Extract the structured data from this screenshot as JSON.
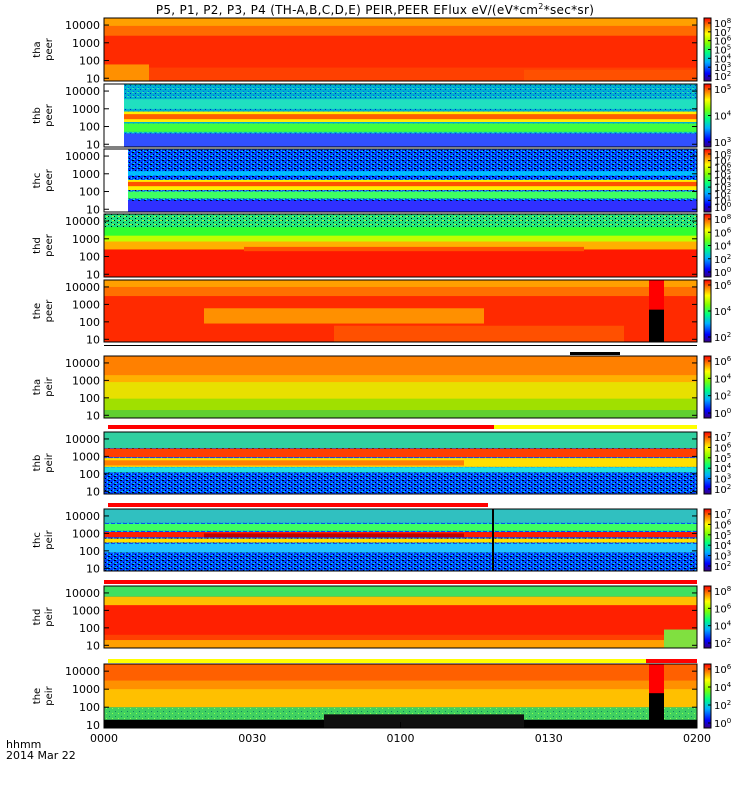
{
  "title": "P5, P1, P2, P3, P4 (TH-A,B,C,D,E) PEIR,PEER EFlux eV/(eV*cm",
  "title_sup": "2",
  "title_end": "*sec*sr)",
  "time_axis": {
    "label": "hhmm",
    "date": "2014 Mar 22",
    "ticks": [
      "0000",
      "0030",
      "0100",
      "0130",
      "0200"
    ],
    "range_min": [
      0,
      120
    ]
  },
  "panels": [
    {
      "probe": "tha",
      "species": "peer",
      "yticks": [
        "10000",
        "1000",
        "100",
        "10"
      ],
      "cbar_ticks": [
        {
          "b": "10",
          "e": "8"
        },
        {
          "b": "10",
          "e": "7"
        },
        {
          "b": "10",
          "e": "6"
        },
        {
          "b": "10",
          "e": "5"
        },
        {
          "b": "10",
          "e": "4"
        },
        {
          "b": "10",
          "e": "3"
        },
        {
          "b": "10",
          "e": "2"
        }
      ],
      "style": "hot"
    },
    {
      "probe": "thb",
      "species": "peer",
      "yticks": [
        "10000",
        "1000",
        "100",
        "10"
      ],
      "cbar_ticks": [
        {
          "b": "10",
          "e": "5"
        },
        {
          "b": "10",
          "e": "4"
        },
        {
          "b": "10",
          "e": "3"
        }
      ],
      "style": "bands_low"
    },
    {
      "probe": "thc",
      "species": "peer",
      "yticks": [
        "10000",
        "1000",
        "100",
        "10"
      ],
      "cbar_ticks": [
        {
          "b": "10",
          "e": "8"
        },
        {
          "b": "10",
          "e": "7"
        },
        {
          "b": "10",
          "e": "6"
        },
        {
          "b": "10",
          "e": "5"
        },
        {
          "b": "10",
          "e": "4"
        },
        {
          "b": "10",
          "e": "3"
        },
        {
          "b": "10",
          "e": "2"
        },
        {
          "b": "10",
          "e": "1"
        },
        {
          "b": "10",
          "e": "0"
        }
      ],
      "style": "bands_noisy"
    },
    {
      "probe": "thd",
      "species": "peer",
      "yticks": [
        "10000",
        "1000",
        "100",
        "10"
      ],
      "cbar_ticks": [
        {
          "b": "10",
          "e": "8"
        },
        {
          "b": "10",
          "e": "6"
        },
        {
          "b": "10",
          "e": "4"
        },
        {
          "b": "10",
          "e": "2"
        },
        {
          "b": "10",
          "e": "0"
        }
      ],
      "style": "low_hot"
    },
    {
      "probe": "the",
      "species": "peer",
      "yticks": [
        "10000",
        "1000",
        "100",
        "10"
      ],
      "cbar_ticks": [
        {
          "b": "10",
          "e": "6"
        },
        {
          "b": "10",
          "e": "4"
        },
        {
          "b": "10",
          "e": "2"
        }
      ],
      "style": "hot_gap"
    },
    {
      "probe": "tha",
      "species": "peir",
      "yticks": [
        "10000",
        "1000",
        "100",
        "10"
      ],
      "cbar_ticks": [
        {
          "b": "10",
          "e": "6"
        },
        {
          "b": "10",
          "e": "4"
        },
        {
          "b": "10",
          "e": "2"
        },
        {
          "b": "10",
          "e": "0"
        }
      ],
      "style": "ion_warm"
    },
    {
      "probe": "thb",
      "species": "peir",
      "yticks": [
        "10000",
        "1000",
        "100",
        "10"
      ],
      "cbar_ticks": [
        {
          "b": "10",
          "e": "7"
        },
        {
          "b": "10",
          "e": "6"
        },
        {
          "b": "10",
          "e": "5"
        },
        {
          "b": "10",
          "e": "4"
        },
        {
          "b": "10",
          "e": "3"
        },
        {
          "b": "10",
          "e": "2"
        }
      ],
      "style": "ion_bands"
    },
    {
      "probe": "thc",
      "species": "peir",
      "yticks": [
        "10000",
        "1000",
        "100",
        "10"
      ],
      "cbar_ticks": [
        {
          "b": "10",
          "e": "7"
        },
        {
          "b": "10",
          "e": "6"
        },
        {
          "b": "10",
          "e": "5"
        },
        {
          "b": "10",
          "e": "4"
        },
        {
          "b": "10",
          "e": "3"
        },
        {
          "b": "10",
          "e": "2"
        }
      ],
      "style": "ion_bands_noisy"
    },
    {
      "probe": "thd",
      "species": "peir",
      "yticks": [
        "10000",
        "1000",
        "100",
        "10"
      ],
      "cbar_ticks": [
        {
          "b": "10",
          "e": "8"
        },
        {
          "b": "10",
          "e": "6"
        },
        {
          "b": "10",
          "e": "4"
        },
        {
          "b": "10",
          "e": "2"
        }
      ],
      "style": "ion_hot"
    },
    {
      "probe": "the",
      "species": "peir",
      "yticks": [
        "10000",
        "1000",
        "100",
        "10"
      ],
      "cbar_ticks": [
        {
          "b": "10",
          "e": "6"
        },
        {
          "b": "10",
          "e": "4"
        },
        {
          "b": "10",
          "e": "2"
        },
        {
          "b": "10",
          "e": "0"
        }
      ],
      "style": "ion_gap"
    }
  ],
  "chart_data": {
    "type": "heatmap",
    "title": "P5, P1, P2, P3, P4 (TH-A,B,C,D,E) PEIR,PEER EFlux eV/(eV*cm^2*sec*sr)",
    "xlabel": "hhmm",
    "x_ticks": [
      "0000",
      "0030",
      "0100",
      "0130",
      "0200"
    ],
    "y_scale": "log",
    "y_ticks": [
      10000,
      1000,
      100,
      10
    ],
    "ylim": [
      7,
      25000
    ],
    "panels": [
      "tha peer",
      "thb peer",
      "thc peer",
      "thd peer",
      "the peer",
      "tha peir",
      "thb peir",
      "thc peir",
      "thd peir",
      "the peir"
    ],
    "colorbar_scale": "log"
  },
  "colors": {
    "background": "#ffffff",
    "axis": "#000000",
    "flag_red": "#ff0000",
    "flag_yellow": "#ffff00"
  }
}
